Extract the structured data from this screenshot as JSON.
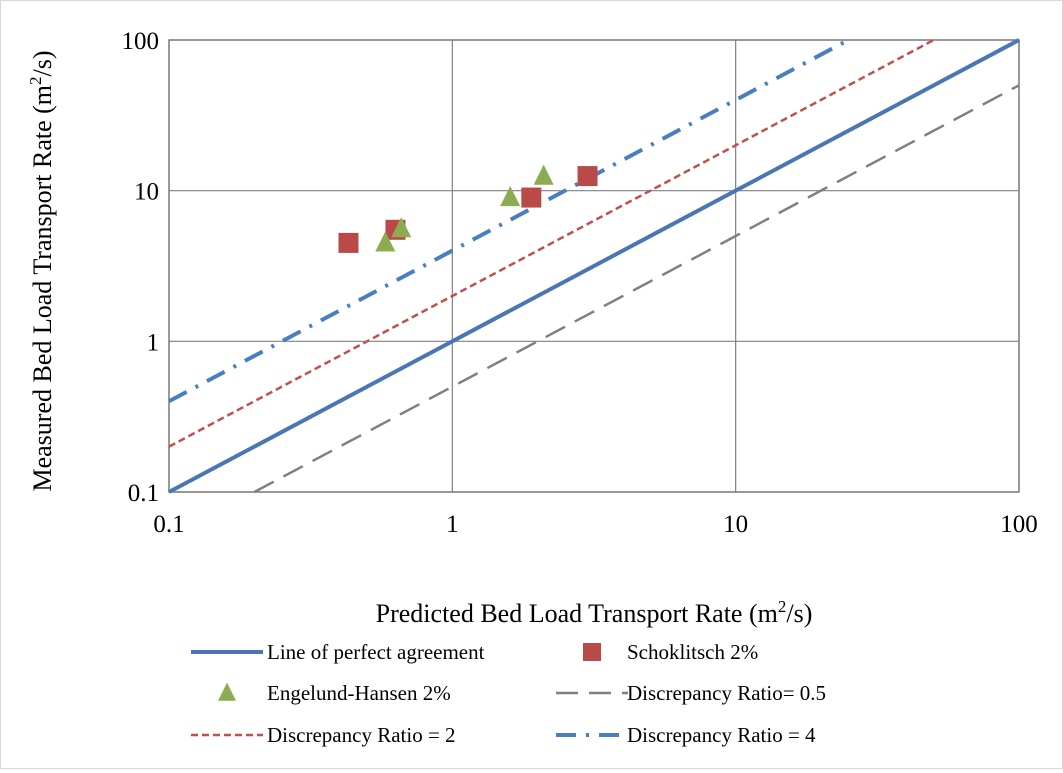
{
  "chart_data": {
    "type": "scatter",
    "title": "",
    "xlabel": {
      "main": "Predicted Bed Load Transport Rate (m",
      "sup": "2",
      "tail": "/s)"
    },
    "ylabel": {
      "main": "Measured Bed Load Transport Rate (m",
      "sup": "2",
      "tail": "/s)"
    },
    "x_scale": "log",
    "y_scale": "log",
    "xlim": [
      0.1,
      100
    ],
    "ylim": [
      0.1,
      100
    ],
    "x_ticks": [
      0.1,
      1,
      10,
      100
    ],
    "y_ticks": [
      0.1,
      1,
      10,
      100
    ],
    "x_tick_labels": [
      "0.1",
      "1",
      "10",
      "100"
    ],
    "y_tick_labels": [
      "0.1",
      "1",
      "10",
      "100"
    ],
    "grid": true,
    "legend_position": "bottom",
    "series": [
      {
        "name": "Line of perfect agreement",
        "kind": "line",
        "style": "solid",
        "color": "#4a76b4",
        "x": [
          0.1,
          100
        ],
        "y": [
          0.1,
          100
        ]
      },
      {
        "name": "Schoklitsch 2%",
        "kind": "marker",
        "marker": "square",
        "color": "#b94a48",
        "x": [
          0.43,
          0.63,
          1.9,
          3.0
        ],
        "y": [
          4.5,
          5.5,
          9.0,
          12.5
        ]
      },
      {
        "name": "Engelund-Hansen 2%",
        "kind": "marker",
        "marker": "triangle",
        "color": "#8cac52",
        "x": [
          0.58,
          0.66,
          1.6,
          2.1
        ],
        "y": [
          4.5,
          5.6,
          9.0,
          12.5
        ]
      },
      {
        "name": "Discrepancy Ratio= 0.5",
        "kind": "line",
        "style": "long-dash",
        "color": "#808080",
        "x": [
          0.2,
          100
        ],
        "y": [
          0.1,
          50
        ]
      },
      {
        "name": "Discrepancy Ratio = 2",
        "kind": "line",
        "style": "short-dash",
        "color": "#c0504d",
        "x": [
          0.1,
          50
        ],
        "y": [
          0.2,
          100
        ]
      },
      {
        "name": "Discrepancy Ratio = 4",
        "kind": "line",
        "style": "dash-dot",
        "color": "#4a7fbf",
        "x": [
          0.1,
          25
        ],
        "y": [
          0.4,
          100
        ]
      }
    ]
  }
}
